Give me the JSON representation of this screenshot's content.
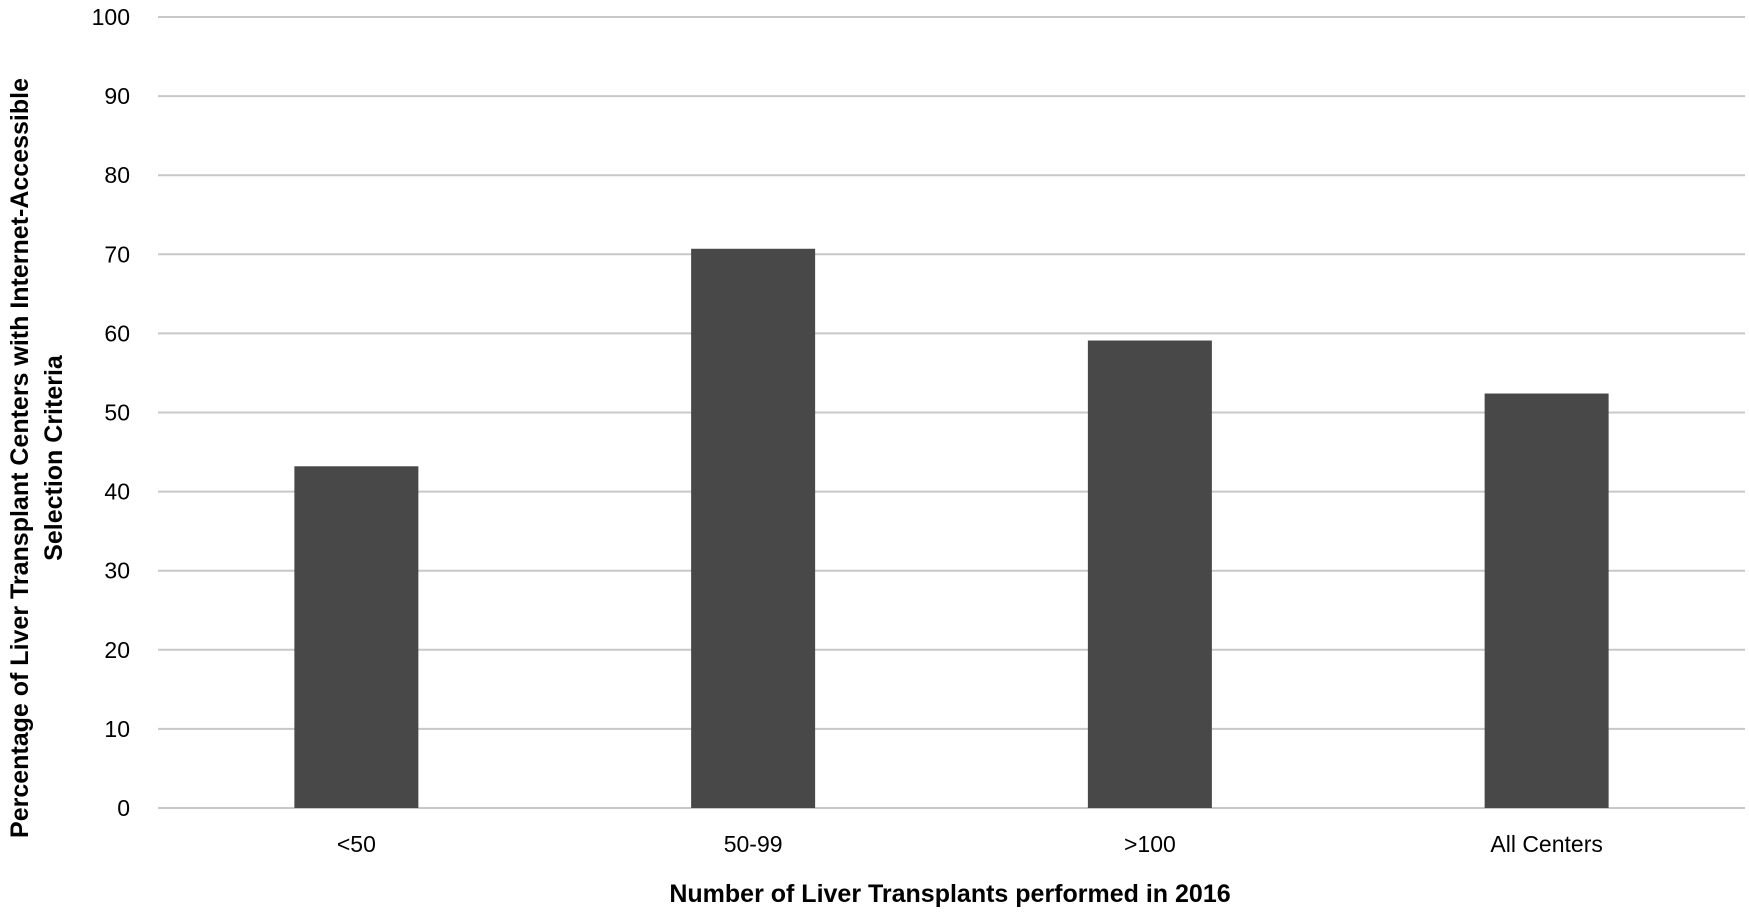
{
  "chart_data": {
    "type": "bar",
    "title": "",
    "xlabel": "Number of Liver Transplants performed in 2016",
    "ylabel_lines": [
      "Percentage of Liver Transplant Centers with Internet-Accessible",
      "Selection Criteria"
    ],
    "categories": [
      "<50",
      "50-99",
      ">100",
      "All Centers"
    ],
    "values": [
      43.2,
      70.7,
      59.1,
      52.4
    ],
    "ylim": [
      0,
      100
    ],
    "yticks": [
      0,
      10,
      20,
      30,
      40,
      50,
      60,
      70,
      80,
      90,
      100
    ],
    "grid": true,
    "legend": "none",
    "bar_color": "#484848",
    "grid_color": "#c8c8c8"
  }
}
